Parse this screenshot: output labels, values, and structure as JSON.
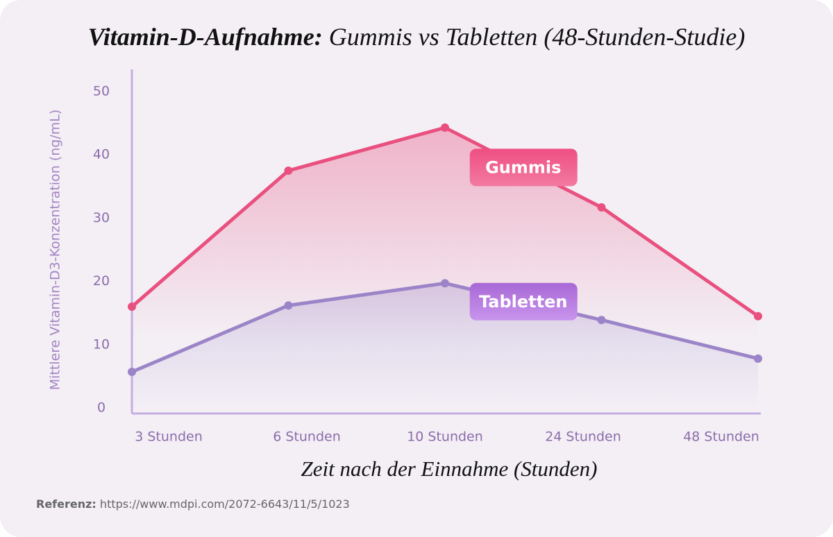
{
  "chart_data": {
    "type": "line",
    "title_lead": "Vitamin-D-Aufnahme:",
    "title": "Gummis vs Tabletten (48-Stunden-Studie)",
    "x_label": "Zeit nach der Einnahme (Stunden)",
    "y_label": "Mittlere Vitamin-D3-Konzentration (ng/mL)",
    "categories": [
      "3 Stunden",
      "6 Stunden",
      "10 Stunden",
      "24 Stunden",
      "48 Stunden"
    ],
    "series": [
      {
        "name": "Gummis",
        "color": "#e9507f",
        "values": [
          16,
          37.5,
          44.3,
          31.7,
          14.5
        ]
      },
      {
        "name": "Tabletten",
        "color": "#9b84c7",
        "values": [
          5.7,
          16.2,
          19.7,
          13.9,
          7.8
        ]
      }
    ],
    "ylim": [
      0,
      53.5
    ],
    "yticks": [
      0,
      10,
      20,
      30,
      40,
      50
    ],
    "reference_label": "Referenz:",
    "reference_url": "https://www.mdpi.com/2072-6643/11/5/1023"
  }
}
